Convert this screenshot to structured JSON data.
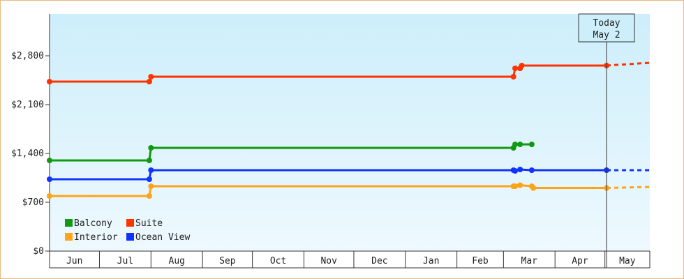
{
  "chart_data": {
    "type": "line",
    "title": "",
    "xlabel": "",
    "ylabel": "",
    "ylim": [
      0,
      3400
    ],
    "y_ticks": [
      0,
      700,
      1400,
      2100,
      2800
    ],
    "y_tick_labels": [
      "$0",
      "$700",
      "$1,400",
      "$2,100",
      "$2,800"
    ],
    "x_range": [
      "2021-06-01",
      "2022-05-28"
    ],
    "x_month_labels": [
      {
        "label": "Jun",
        "date": "2021-06-01"
      },
      {
        "label": "Jul",
        "date": "2021-07-01"
      },
      {
        "label": "Aug",
        "date": "2021-08-01"
      },
      {
        "label": "Sep",
        "date": "2021-09-01"
      },
      {
        "label": "Oct",
        "date": "2021-10-01"
      },
      {
        "label": "Nov",
        "date": "2021-11-01"
      },
      {
        "label": "Dec",
        "date": "2021-12-01"
      },
      {
        "label": "Jan",
        "date": "2022-01-01"
      },
      {
        "label": "Feb",
        "date": "2022-02-01"
      },
      {
        "label": "Mar",
        "date": "2022-03-01"
      },
      {
        "label": "Apr",
        "date": "2022-04-01"
      },
      {
        "label": "May",
        "date": "2022-05-01"
      }
    ],
    "today": {
      "label_line1": "Today",
      "label_line2": "May 2",
      "date": "2022-05-02"
    },
    "grid": false,
    "legend_position": "bottom-left",
    "series": [
      {
        "name": "Suite",
        "color": "#ff3300",
        "points": [
          {
            "date": "2021-06-01",
            "value": 2430
          },
          {
            "date": "2021-07-31",
            "value": 2430
          },
          {
            "date": "2021-08-01",
            "value": 2500
          },
          {
            "date": "2022-03-07",
            "value": 2500
          },
          {
            "date": "2022-03-08",
            "value": 2620
          },
          {
            "date": "2022-03-11",
            "value": 2620
          },
          {
            "date": "2022-03-12",
            "value": 2660
          },
          {
            "date": "2022-05-02",
            "value": 2660
          }
        ],
        "projection": {
          "date": "2022-05-28",
          "value": 2700
        }
      },
      {
        "name": "Balcony",
        "color": "#119911",
        "points": [
          {
            "date": "2021-06-01",
            "value": 1300
          },
          {
            "date": "2021-07-31",
            "value": 1300
          },
          {
            "date": "2021-08-01",
            "value": 1480
          },
          {
            "date": "2022-03-07",
            "value": 1480
          },
          {
            "date": "2022-03-08",
            "value": 1530
          },
          {
            "date": "2022-03-11",
            "value": 1530
          },
          {
            "date": "2022-03-18",
            "value": 1530
          }
        ]
      },
      {
        "name": "Ocean View",
        "color": "#1133ff",
        "points": [
          {
            "date": "2021-06-01",
            "value": 1030
          },
          {
            "date": "2021-07-31",
            "value": 1030
          },
          {
            "date": "2021-08-01",
            "value": 1160
          },
          {
            "date": "2022-03-07",
            "value": 1160
          },
          {
            "date": "2022-03-08",
            "value": 1150
          },
          {
            "date": "2022-03-11",
            "value": 1170
          },
          {
            "date": "2022-03-18",
            "value": 1160
          },
          {
            "date": "2022-05-02",
            "value": 1160
          }
        ],
        "projection": {
          "date": "2022-05-28",
          "value": 1160
        }
      },
      {
        "name": "Interior",
        "color": "#ffa319",
        "points": [
          {
            "date": "2021-06-01",
            "value": 790
          },
          {
            "date": "2021-07-31",
            "value": 790
          },
          {
            "date": "2021-08-01",
            "value": 930
          },
          {
            "date": "2022-03-07",
            "value": 930
          },
          {
            "date": "2022-03-08",
            "value": 930
          },
          {
            "date": "2022-03-11",
            "value": 945
          },
          {
            "date": "2022-03-18",
            "value": 930
          },
          {
            "date": "2022-03-19",
            "value": 905
          },
          {
            "date": "2022-05-02",
            "value": 905
          }
        ],
        "projection": {
          "date": "2022-05-28",
          "value": 920
        }
      }
    ],
    "legend": [
      {
        "label": "Balcony",
        "color": "#119911"
      },
      {
        "label": "Suite",
        "color": "#ff3300"
      },
      {
        "label": "Interior",
        "color": "#ffa319"
      },
      {
        "label": "Ocean View",
        "color": "#1133ff"
      }
    ],
    "colors": {
      "plot_bg_top": "#cdeefb",
      "plot_bg_bottom": "#eef9fe",
      "frame_border": "#e8b980"
    }
  }
}
